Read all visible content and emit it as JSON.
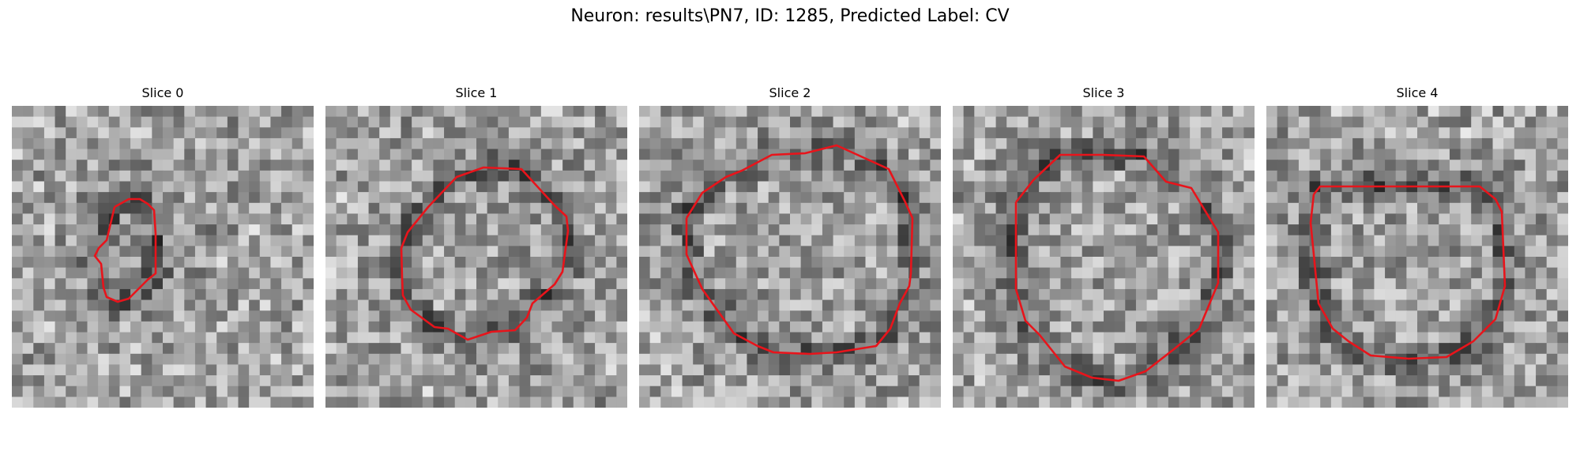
{
  "figure": {
    "title": "Neuron: results\\PN7, ID: 1285, Predicted Label: CV"
  },
  "colors": {
    "contour": "#e8141b",
    "background": "#ffffff"
  },
  "slices": [
    {
      "title": "Slice 0"
    },
    {
      "title": "Slice 1"
    },
    {
      "title": "Slice 2"
    },
    {
      "title": "Slice 3"
    },
    {
      "title": "Slice 4"
    }
  ]
}
